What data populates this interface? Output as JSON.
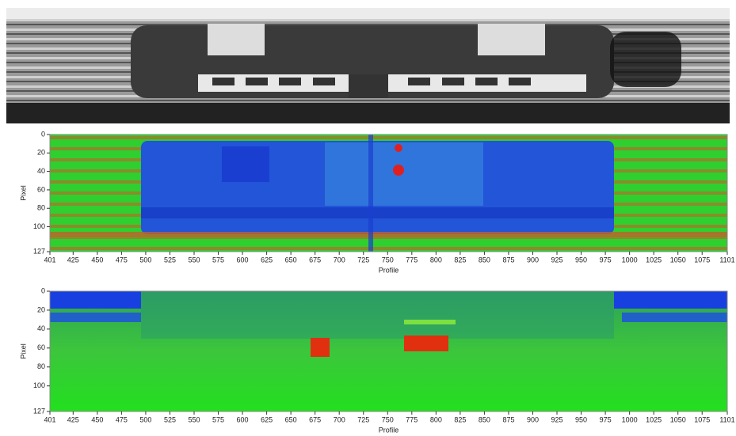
{
  "panels": [
    {
      "y_label": "Pixel",
      "x_label": "Profile",
      "y_ticks": [
        0,
        20,
        40,
        60,
        80,
        100,
        127
      ],
      "x_ticks": [
        401,
        425,
        450,
        475,
        500,
        525,
        550,
        575,
        600,
        625,
        650,
        675,
        700,
        725,
        750,
        775,
        800,
        825,
        850,
        875,
        900,
        925,
        950,
        975,
        1000,
        1025,
        1050,
        1075,
        1101
      ]
    },
    {
      "y_label": "Pixel",
      "x_label": "Profile",
      "y_ticks": [
        0,
        20,
        40,
        60,
        80,
        100,
        127
      ],
      "x_ticks": [
        401,
        425,
        450,
        475,
        500,
        525,
        550,
        575,
        600,
        625,
        650,
        675,
        700,
        725,
        750,
        775,
        800,
        825,
        850,
        875,
        900,
        925,
        950,
        975,
        1000,
        1025,
        1050,
        1075,
        1101
      ]
    }
  ]
}
